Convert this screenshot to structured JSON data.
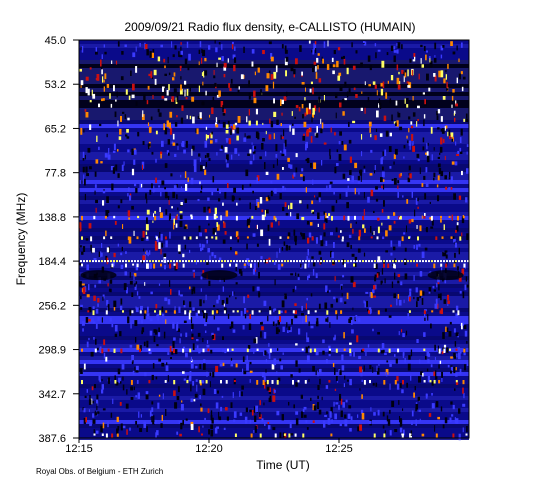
{
  "chart_data": {
    "type": "heatmap",
    "title": "2009/09/21  Radio flux density, e-CALLISTO (HUMAIN)",
    "xlabel": "Time (UT)",
    "ylabel": "Frequency (MHz)",
    "x_ticks": [
      "12:15",
      "12:20",
      "12:25"
    ],
    "x_tick_minutes": [
      0,
      5,
      10
    ],
    "x_range_minutes": [
      0,
      15
    ],
    "y_ticks": [
      "45.0",
      "53.2",
      "65.2",
      "77.8",
      "138.8",
      "184.4",
      "256.2",
      "298.9",
      "342.7",
      "387.6"
    ],
    "y_range": [
      45.0,
      387.6
    ],
    "colors": {
      "background": "#0a0a8a",
      "bright": "#3a3aff",
      "dark": "#000010",
      "hot_red": "#cc1010",
      "hot_orange": "#ff8800",
      "hot_yellow": "#ffff66",
      "hot_white": "#ffffff"
    },
    "features": {
      "dark_band_top_MHz": [
        48,
        62
      ],
      "bright_band_MHz": [
        120,
        150
      ],
      "bright_line_MHz": 184.4,
      "interference_rows_MHz": [
        138.8,
        160,
        190,
        262,
        298.9,
        330,
        384
      ]
    }
  },
  "credit": "Royal Obs. of Belgium - ETH Zurich"
}
